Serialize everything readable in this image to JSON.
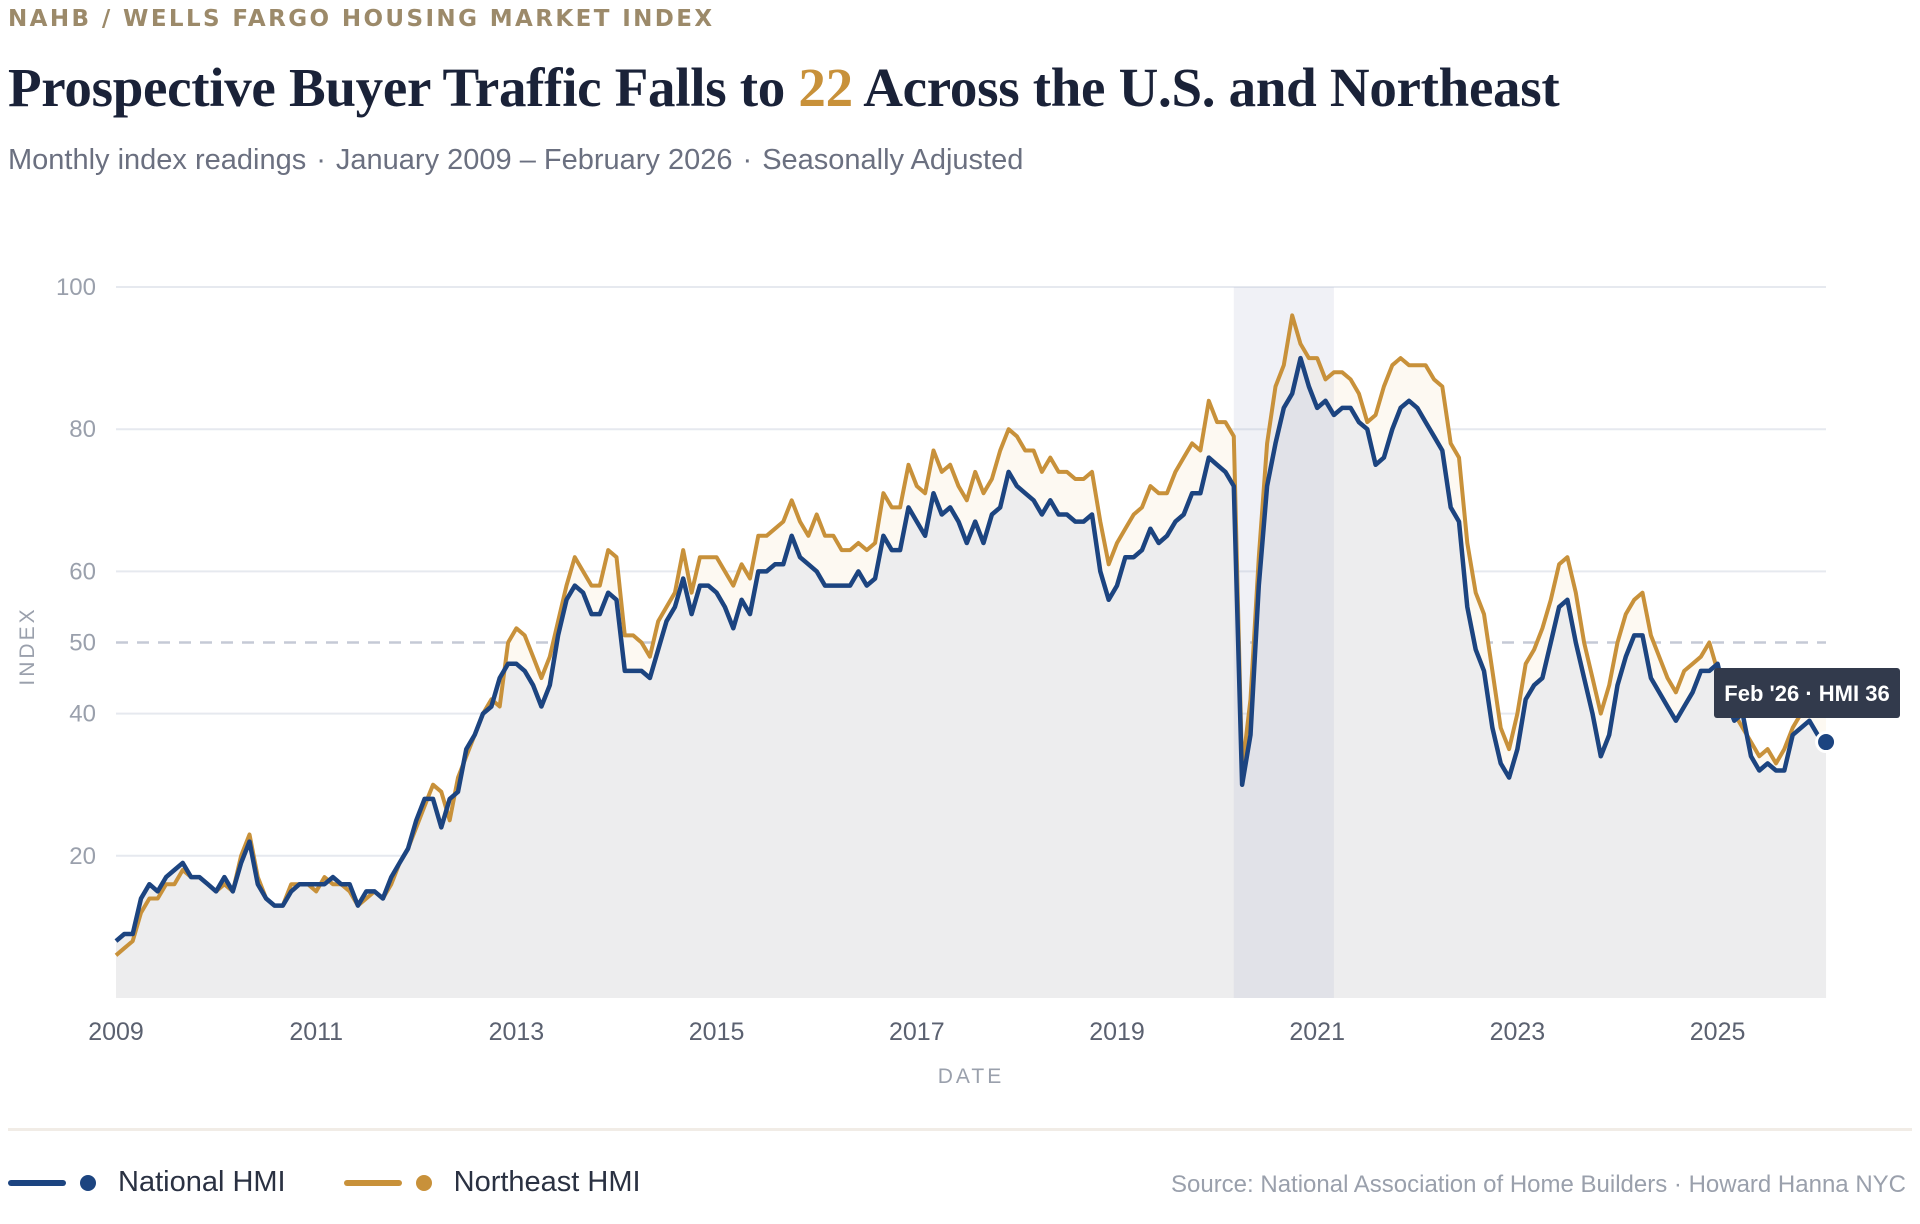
{
  "header": {
    "kicker": "NAHB / WELLS FARGO HOUSING MARKET INDEX",
    "title_before": "Prospective Buyer Traffic Falls to",
    "title_highlight": "22",
    "title_after": "Across the U.S. and Northeast",
    "subtitle_parts": [
      "Monthly index readings",
      "January 2009 – February 2026",
      "Seasonally Adjusted"
    ],
    "subtitle_separator": "·"
  },
  "colors": {
    "national": "#1c4480",
    "northeast": "#c8913a",
    "title": "#1a2238",
    "highlight": "#c8913a",
    "kicker": "#9c8a6a"
  },
  "chart_data": {
    "type": "line",
    "xlabel": "DATE",
    "ylabel": "INDEX",
    "x_start": "2009-01",
    "x_end": "2026-02",
    "frequency": "monthly",
    "ylim": [
      0,
      100
    ],
    "xlim": [
      2009,
      2026.1
    ],
    "y_ticks": [
      20,
      40,
      50,
      60,
      80,
      100
    ],
    "x_ticks": [
      "2009",
      "2011",
      "2013",
      "2015",
      "2017",
      "2019",
      "2021",
      "2023",
      "2025"
    ],
    "grid": true,
    "reference_line": {
      "value": 50,
      "style": "dashed"
    },
    "shaded_period": {
      "start": "2020-03",
      "end": "2021-02"
    },
    "legend_placement": "bottom-left",
    "tooltip": {
      "text": "Feb '26 · HMI 36",
      "date": "2026-02",
      "value": 36
    },
    "series": [
      {
        "name": "National HMI",
        "color": "#1c4480",
        "values": [
          8,
          9,
          9,
          14,
          16,
          15,
          17,
          18,
          19,
          17,
          17,
          16,
          15,
          17,
          15,
          19,
          22,
          16,
          14,
          13,
          13,
          15,
          16,
          16,
          16,
          16,
          17,
          16,
          16,
          13,
          15,
          15,
          14,
          17,
          19,
          21,
          25,
          28,
          28,
          24,
          28,
          29,
          35,
          37,
          40,
          41,
          45,
          47,
          47,
          46,
          44,
          41,
          44,
          51,
          56,
          58,
          57,
          54,
          54,
          57,
          56,
          46,
          46,
          46,
          45,
          49,
          53,
          55,
          59,
          54,
          58,
          58,
          57,
          55,
          52,
          56,
          54,
          60,
          60,
          61,
          61,
          65,
          62,
          61,
          60,
          58,
          58,
          58,
          58,
          60,
          58,
          59,
          65,
          63,
          63,
          69,
          67,
          65,
          71,
          68,
          69,
          67,
          64,
          67,
          64,
          68,
          69,
          74,
          72,
          71,
          70,
          68,
          70,
          68,
          68,
          67,
          67,
          68,
          60,
          56,
          58,
          62,
          62,
          63,
          66,
          64,
          65,
          67,
          68,
          71,
          71,
          76,
          75,
          74,
          72,
          30,
          37,
          58,
          72,
          78,
          83,
          85,
          90,
          86,
          83,
          84,
          82,
          83,
          83,
          81,
          80,
          75,
          76,
          80,
          83,
          84,
          83,
          81,
          79,
          77,
          69,
          67,
          55,
          49,
          46,
          38,
          33,
          31,
          35,
          42,
          44,
          45,
          50,
          55,
          56,
          50,
          45,
          40,
          34,
          37,
          44,
          48,
          51,
          51,
          45,
          43,
          41,
          39,
          41,
          43,
          46,
          46,
          47,
          42,
          39,
          40,
          34,
          32,
          33,
          32,
          32,
          37,
          38,
          39,
          37,
          36
        ]
      },
      {
        "name": "Northeast HMI",
        "color": "#c8913a",
        "values": [
          6,
          7,
          8,
          12,
          14,
          14,
          16,
          16,
          18,
          17,
          17,
          16,
          15,
          16,
          15,
          20,
          23,
          17,
          14,
          13,
          13,
          16,
          16,
          16,
          15,
          17,
          16,
          16,
          15,
          13,
          14,
          15,
          14,
          16,
          19,
          21,
          24,
          27,
          30,
          29,
          25,
          31,
          34,
          37,
          40,
          42,
          41,
          50,
          52,
          51,
          48,
          45,
          48,
          53,
          58,
          62,
          60,
          58,
          58,
          63,
          62,
          51,
          51,
          50,
          48,
          53,
          55,
          57,
          63,
          57,
          62,
          62,
          62,
          60,
          58,
          61,
          59,
          65,
          65,
          66,
          67,
          70,
          67,
          65,
          68,
          65,
          65,
          63,
          63,
          64,
          63,
          64,
          71,
          69,
          69,
          75,
          72,
          71,
          77,
          74,
          75,
          72,
          70,
          74,
          71,
          73,
          77,
          80,
          79,
          77,
          77,
          74,
          76,
          74,
          74,
          73,
          73,
          74,
          67,
          61,
          64,
          66,
          68,
          69,
          72,
          71,
          71,
          74,
          76,
          78,
          77,
          84,
          81,
          81,
          79,
          32,
          42,
          62,
          78,
          86,
          89,
          96,
          92,
          90,
          90,
          87,
          88,
          88,
          87,
          85,
          81,
          82,
          86,
          89,
          90,
          89,
          89,
          89,
          87,
          86,
          78,
          76,
          64,
          57,
          54,
          46,
          38,
          35,
          40,
          47,
          49,
          52,
          56,
          61,
          62,
          57,
          50,
          45,
          40,
          44,
          50,
          54,
          56,
          57,
          51,
          48,
          45,
          43,
          46,
          47,
          48,
          50,
          46,
          42,
          40,
          38,
          36,
          34,
          35,
          33,
          35,
          38,
          40,
          42,
          41,
          41
        ]
      }
    ]
  },
  "legend": [
    {
      "label": "National HMI",
      "color": "#1c4480"
    },
    {
      "label": "Northeast HMI",
      "color": "#c8913a"
    }
  ],
  "footer": {
    "source": "Source: National Association of Home Builders · Howard Hanna NYC"
  }
}
